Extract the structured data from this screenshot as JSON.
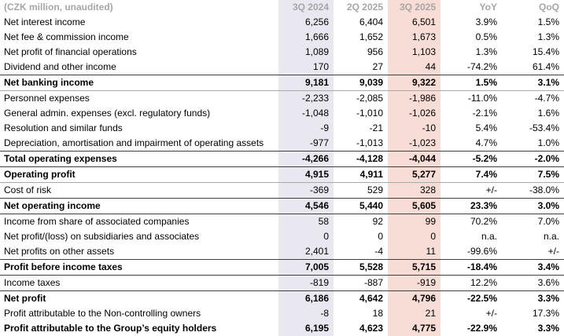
{
  "table": {
    "unit_label": "(CZK million, unaudited)",
    "columns": [
      {
        "label": "3Q 2024",
        "highlight": "prev"
      },
      {
        "label": "2Q 2025",
        "highlight": null
      },
      {
        "label": "3Q 2025",
        "highlight": "current"
      },
      {
        "label": "YoY",
        "highlight": null
      },
      {
        "label": "QoQ",
        "highlight": null
      }
    ],
    "rows": [
      {
        "label": "Net interest income",
        "values": [
          "6,256",
          "6,404",
          "6,501",
          "3.9%",
          "1.5%"
        ],
        "bold": false,
        "rule_top": false,
        "rule_bottom": null
      },
      {
        "label": "Net fee & commission income",
        "values": [
          "1,666",
          "1,652",
          "1,673",
          "0.5%",
          "1.3%"
        ],
        "bold": false,
        "rule_top": false,
        "rule_bottom": null
      },
      {
        "label": "Net profit of financial operations",
        "values": [
          "1,089",
          "956",
          "1,103",
          "1.3%",
          "15.4%"
        ],
        "bold": false,
        "rule_top": false,
        "rule_bottom": null
      },
      {
        "label": "Dividend and other income",
        "values": [
          "170",
          "27",
          "44",
          "-74.2%",
          "61.4%"
        ],
        "bold": false,
        "rule_top": false,
        "rule_bottom": null
      },
      {
        "label": "Net banking income",
        "values": [
          "9,181",
          "9,039",
          "9,322",
          "1.5%",
          "3.1%"
        ],
        "bold": true,
        "rule_top": true,
        "rule_bottom": "light"
      },
      {
        "label": "Personnel expenses",
        "values": [
          "-2,233",
          "-2,085",
          "-1,986",
          "-11.0%",
          "-4.7%"
        ],
        "bold": false,
        "rule_top": false,
        "rule_bottom": null
      },
      {
        "label": "General admin. expenses (excl. regulatory funds)",
        "values": [
          "-1,048",
          "-1,010",
          "-1,026",
          "-2.1%",
          "1.6%"
        ],
        "bold": false,
        "rule_top": false,
        "rule_bottom": null
      },
      {
        "label": "Resolution and similar funds",
        "values": [
          "-9",
          "-21",
          "-10",
          "5.4%",
          "-53.4%"
        ],
        "bold": false,
        "rule_top": false,
        "rule_bottom": null
      },
      {
        "label": "Depreciation, amortisation and impairment of operating assets",
        "values": [
          "-977",
          "-1,013",
          "-1,023",
          "4.7%",
          "1.0%"
        ],
        "bold": false,
        "rule_top": false,
        "rule_bottom": null
      },
      {
        "label": "Total operating expenses",
        "values": [
          "-4,266",
          "-4,128",
          "-4,044",
          "-5.2%",
          "-2.0%"
        ],
        "bold": true,
        "rule_top": true,
        "rule_bottom": "dark"
      },
      {
        "label": "Operating profit",
        "values": [
          "4,915",
          "4,911",
          "5,277",
          "7.4%",
          "7.5%"
        ],
        "bold": true,
        "rule_top": true,
        "rule_bottom": "light"
      },
      {
        "label": "Cost of risk",
        "values": [
          "-369",
          "529",
          "328",
          "+/-",
          "-38.0%"
        ],
        "bold": false,
        "rule_top": false,
        "rule_bottom": null
      },
      {
        "label": "Net operating income",
        "values": [
          "4,546",
          "5,440",
          "5,605",
          "23.3%",
          "3.0%"
        ],
        "bold": true,
        "rule_top": true,
        "rule_bottom": "dark"
      },
      {
        "label": "Income from share of associated companies",
        "values": [
          "58",
          "92",
          "99",
          "70.2%",
          "7.0%"
        ],
        "bold": false,
        "rule_top": false,
        "rule_bottom": null
      },
      {
        "label": "Net profit/(loss) on subsidiaries and associates",
        "values": [
          "0",
          "0",
          "0",
          "n.a.",
          "n.a."
        ],
        "bold": false,
        "rule_top": false,
        "rule_bottom": null
      },
      {
        "label": "Net profits on other assets",
        "values": [
          "2,401",
          "-4",
          "11",
          "-99.6%",
          "+/-"
        ],
        "bold": false,
        "rule_top": false,
        "rule_bottom": null
      },
      {
        "label": "Profit before income taxes",
        "values": [
          "7,005",
          "5,528",
          "5,715",
          "-18.4%",
          "3.4%"
        ],
        "bold": true,
        "rule_top": true,
        "rule_bottom": "dark"
      },
      {
        "label": "Income taxes",
        "values": [
          "-819",
          "-887",
          "-919",
          "12.2%",
          "3.6%"
        ],
        "bold": false,
        "rule_top": false,
        "rule_bottom": null
      },
      {
        "label": "Net profit",
        "values": [
          "6,186",
          "4,642",
          "4,796",
          "-22.5%",
          "3.3%"
        ],
        "bold": true,
        "rule_top": true,
        "rule_bottom": null
      },
      {
        "label": "Profit attributable to the Non-controlling owners",
        "values": [
          "-8",
          "18",
          "21",
          "+/-",
          "17.3%"
        ],
        "bold": false,
        "rule_top": false,
        "rule_bottom": null
      },
      {
        "label": "Profit attributable to the Group’s equity holders",
        "values": [
          "6,195",
          "4,623",
          "4,775",
          "-22.9%",
          "3.3%"
        ],
        "bold": true,
        "rule_top": false,
        "rule_bottom": null
      }
    ]
  },
  "colors": {
    "prev_quarter_col_bg": "#e9e8f1",
    "current_quarter_col_bg": "#f8dcd6",
    "header_text": "#a6a6a6",
    "body_text": "#000000",
    "rule_dark": "#3f3f3f",
    "rule_light": "#a9a9a9"
  }
}
